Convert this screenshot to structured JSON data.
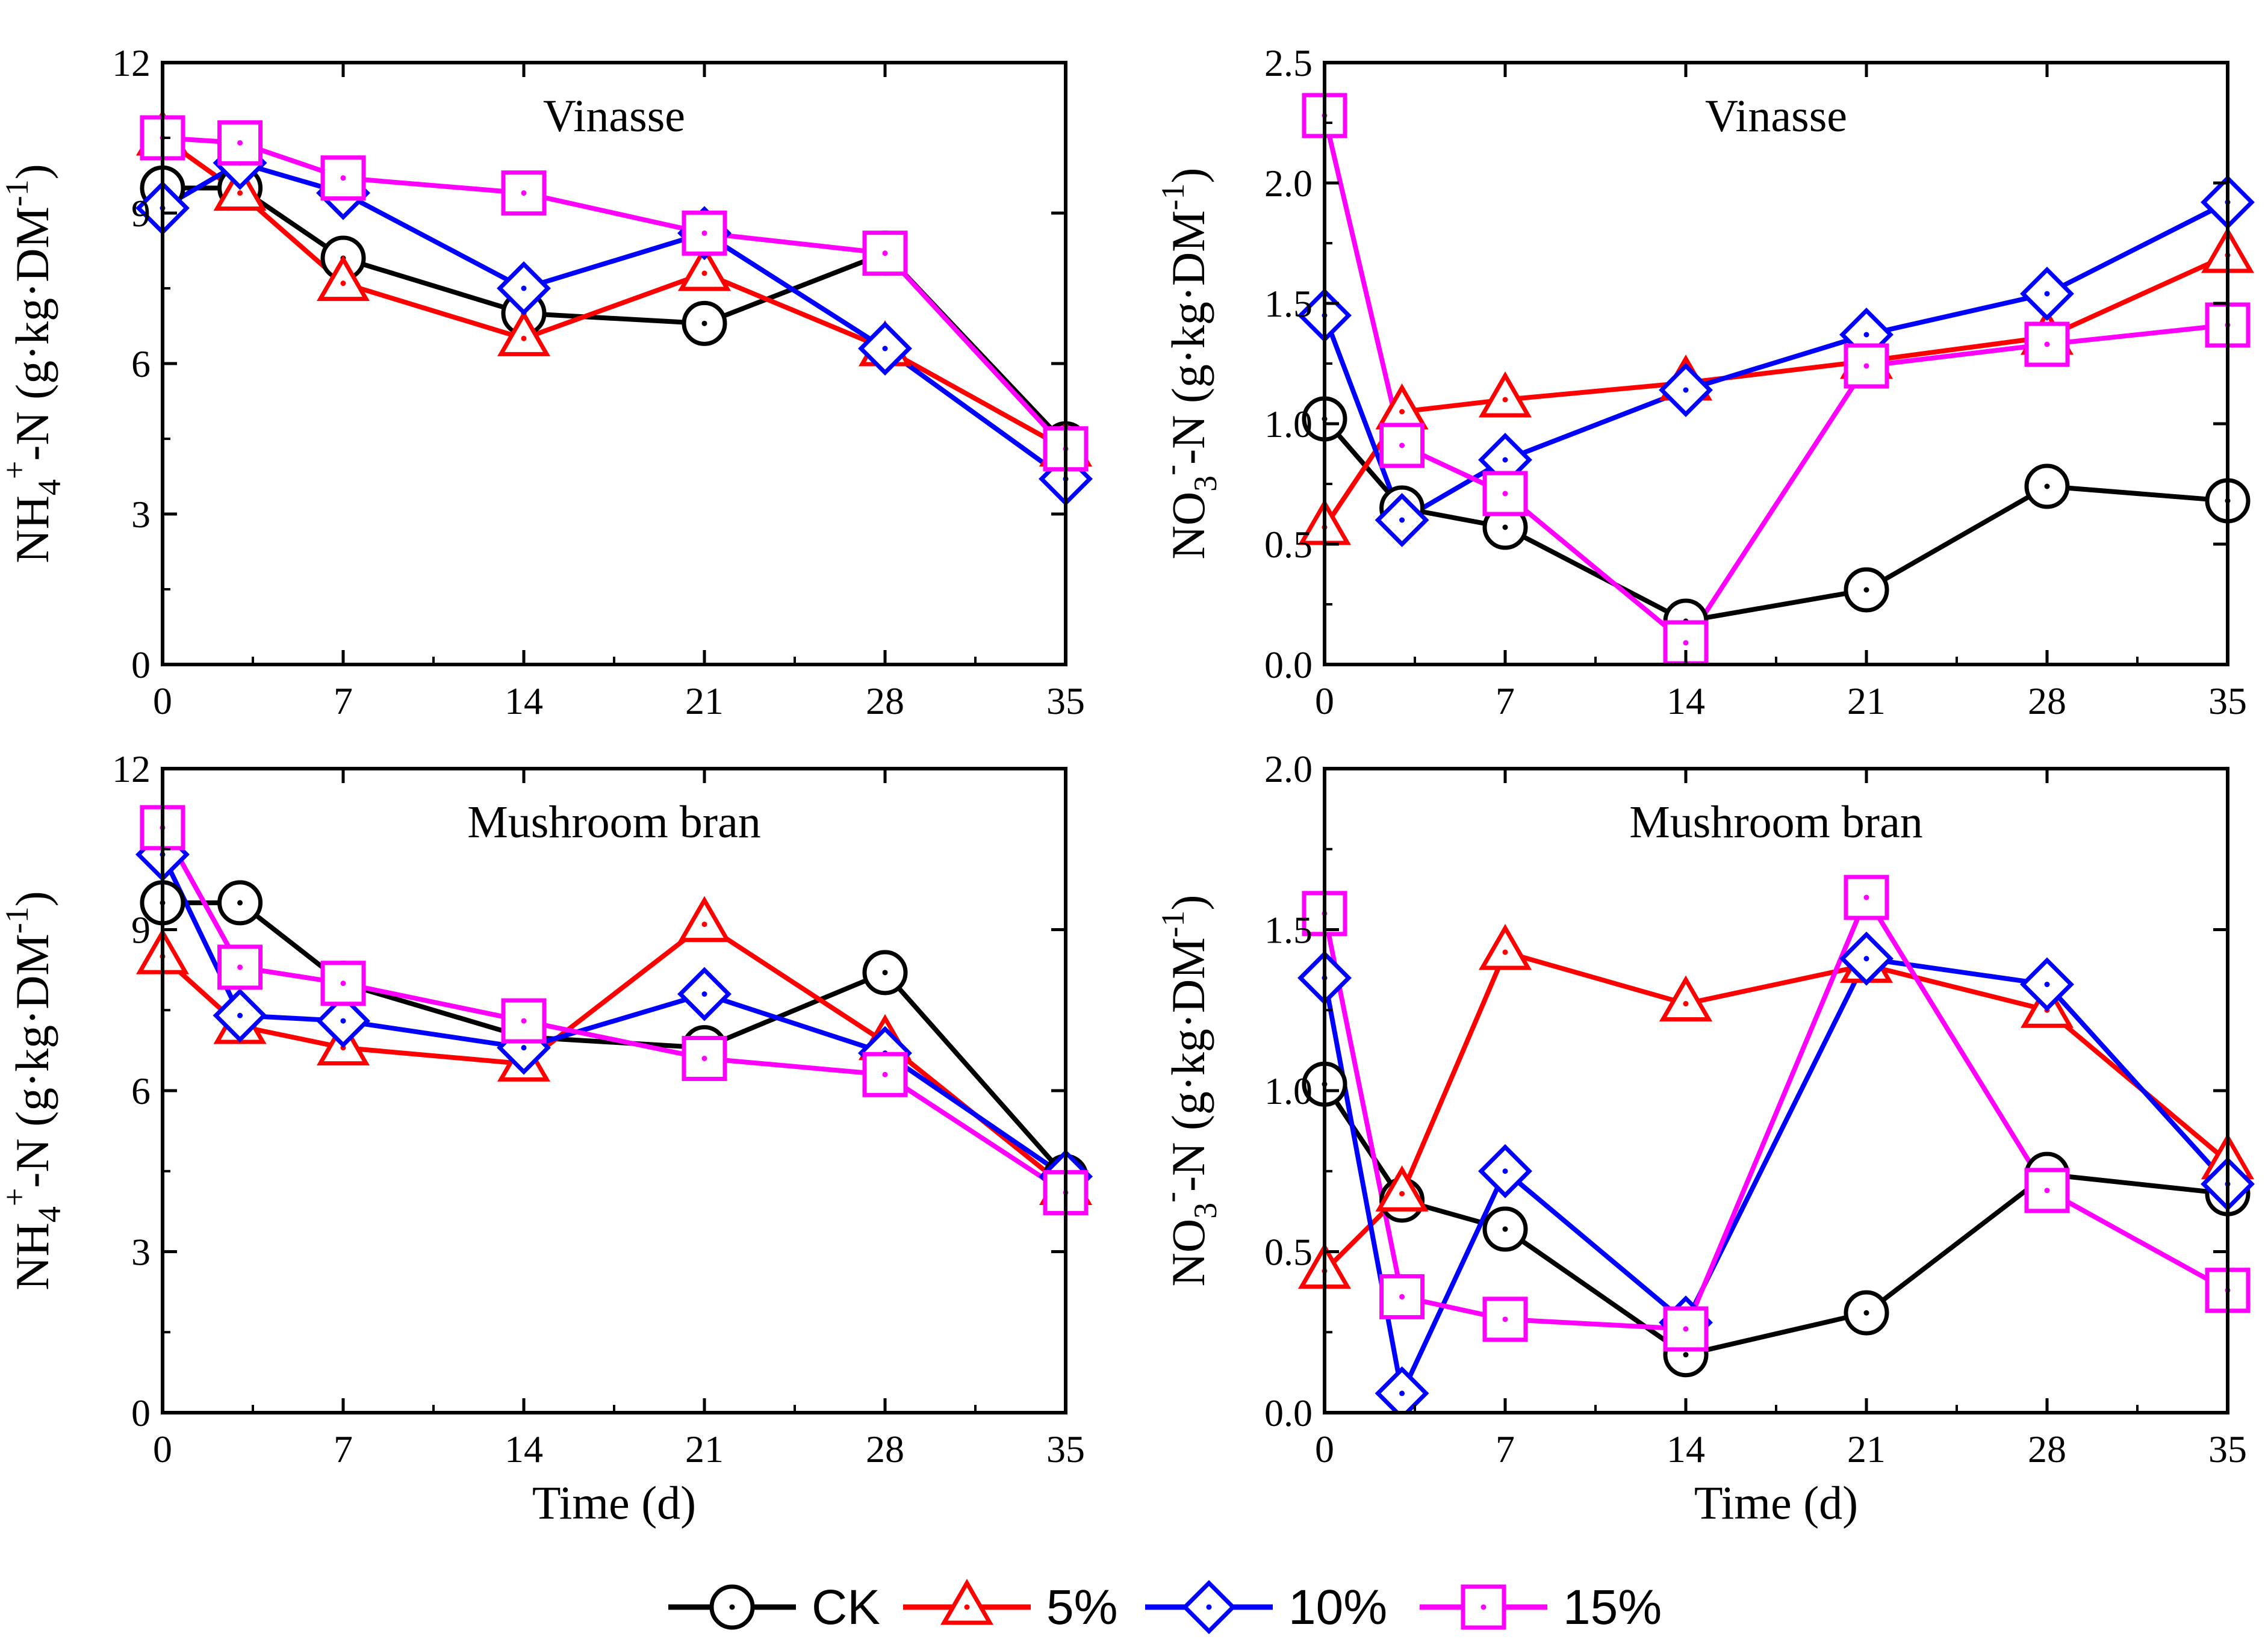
{
  "figure_colors": {
    "CK": "#000000",
    "5%": "#ff0000",
    "10%": "#0000ff",
    "15%": "#ff00ff"
  },
  "legend": {
    "items": [
      {
        "label": "CK",
        "marker": "circle"
      },
      {
        "label": "5%",
        "marker": "triangle"
      },
      {
        "label": "10%",
        "marker": "diamond"
      },
      {
        "label": "15%",
        "marker": "square"
      }
    ]
  },
  "chart_data": [
    {
      "type": "line",
      "title": "Vinasse",
      "xlabel": "",
      "ylabel": {
        "base": "NH",
        "sub": "4",
        "sup": "+",
        "rest": "-N (g·kg·DM",
        "exp": "-1",
        "close": ")"
      },
      "x": [
        0,
        3,
        7,
        14,
        21,
        28,
        35
      ],
      "xticks": [
        0,
        7,
        14,
        21,
        28,
        35
      ],
      "xlim": [
        0,
        35
      ],
      "yticks": [
        0,
        3,
        6,
        9,
        12
      ],
      "ylim": [
        0,
        12
      ],
      "series": [
        {
          "name": "CK",
          "values": [
            9.5,
            9.5,
            8.1,
            7.0,
            6.8,
            8.2,
            4.4
          ]
        },
        {
          "name": "5%",
          "values": [
            10.5,
            9.4,
            7.6,
            6.5,
            7.8,
            6.3,
            4.3
          ]
        },
        {
          "name": "10%",
          "values": [
            9.1,
            10.0,
            9.4,
            7.5,
            8.6,
            6.3,
            3.7
          ]
        },
        {
          "name": "15%",
          "values": [
            10.5,
            10.4,
            9.7,
            9.4,
            8.6,
            8.2,
            4.3
          ]
        }
      ]
    },
    {
      "type": "line",
      "title": "Vinasse",
      "xlabel": "",
      "ylabel": {
        "base": "NO",
        "sub": "3",
        "sup": "-",
        "rest": "-N (g·kg·DM",
        "exp": "-1",
        "close": ")"
      },
      "x": [
        0,
        3,
        7,
        14,
        21,
        28,
        35
      ],
      "xticks": [
        0,
        7,
        14,
        21,
        28,
        35
      ],
      "xlim": [
        0,
        35
      ],
      "yticks": [
        "0.0",
        "0.5",
        "1.0",
        "1.5",
        "2.0",
        "2.5"
      ],
      "ylim": [
        0,
        2.5
      ],
      "series": [
        {
          "name": "CK",
          "values": [
            1.02,
            0.65,
            0.57,
            0.18,
            0.31,
            0.74,
            0.68
          ]
        },
        {
          "name": "5%",
          "values": [
            0.57,
            1.05,
            1.1,
            1.17,
            1.26,
            1.36,
            1.7
          ]
        },
        {
          "name": "10%",
          "values": [
            1.45,
            0.6,
            0.85,
            1.14,
            1.37,
            1.54,
            1.92
          ]
        },
        {
          "name": "15%",
          "values": [
            2.28,
            0.91,
            0.71,
            0.09,
            1.24,
            1.33,
            1.41
          ]
        }
      ]
    },
    {
      "type": "line",
      "title": "Mushroom bran",
      "xlabel": "Time (d)",
      "ylabel": {
        "base": "NH",
        "sub": "4",
        "sup": "+",
        "rest": "-N (g·kg·DM",
        "exp": "-1",
        "close": ")"
      },
      "x": [
        0,
        3,
        7,
        14,
        21,
        28,
        35
      ],
      "xticks": [
        0,
        7,
        14,
        21,
        28,
        35
      ],
      "xlim": [
        0,
        35
      ],
      "yticks": [
        0,
        3,
        6,
        9,
        12
      ],
      "ylim": [
        0,
        12
      ],
      "series": [
        {
          "name": "CK",
          "values": [
            9.5,
            9.5,
            8.0,
            7.0,
            6.8,
            8.2,
            4.4
          ]
        },
        {
          "name": "5%",
          "values": [
            8.5,
            7.2,
            6.8,
            6.5,
            9.1,
            6.9,
            4.2
          ]
        },
        {
          "name": "10%",
          "values": [
            10.4,
            7.4,
            7.3,
            6.8,
            7.8,
            6.7,
            4.4
          ]
        },
        {
          "name": "15%",
          "values": [
            10.9,
            8.3,
            8.0,
            7.3,
            6.6,
            6.3,
            4.1
          ]
        }
      ]
    },
    {
      "type": "line",
      "title": "Mushroom bran",
      "xlabel": "Time (d)",
      "ylabel": {
        "base": "NO",
        "sub": "3",
        "sup": "-",
        "rest": "-N (g·kg·DM",
        "exp": "-1",
        "close": ")"
      },
      "x": [
        0,
        3,
        7,
        14,
        21,
        28,
        35
      ],
      "xticks": [
        0,
        7,
        14,
        21,
        28,
        35
      ],
      "xlim": [
        0,
        35
      ],
      "yticks": [
        "0.0",
        "0.5",
        "1.0",
        "1.5",
        "2.0"
      ],
      "ylim": [
        0,
        2.0
      ],
      "series": [
        {
          "name": "CK",
          "values": [
            1.02,
            0.66,
            0.57,
            0.18,
            0.31,
            0.74,
            0.68
          ]
        },
        {
          "name": "5%",
          "values": [
            0.44,
            0.68,
            1.43,
            1.27,
            1.39,
            1.25,
            0.78
          ]
        },
        {
          "name": "10%",
          "values": [
            1.35,
            0.06,
            0.75,
            0.28,
            1.41,
            1.33,
            0.71
          ]
        },
        {
          "name": "15%",
          "values": [
            1.55,
            0.36,
            0.29,
            0.26,
            1.6,
            0.69,
            0.38
          ]
        }
      ]
    }
  ]
}
